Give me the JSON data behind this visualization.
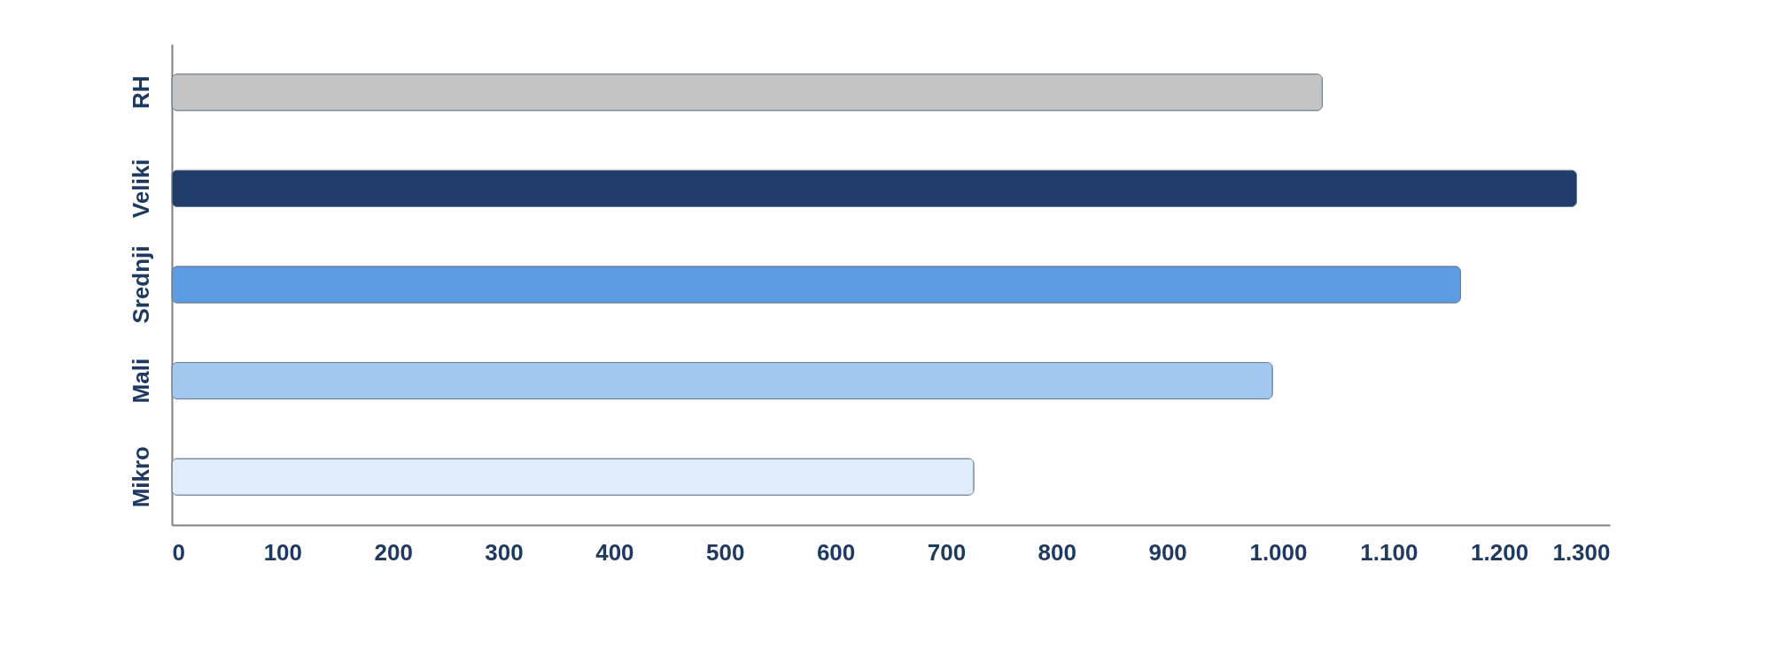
{
  "chart_data": {
    "type": "bar",
    "orientation": "horizontal",
    "categories": [
      "RH",
      "Veliki",
      "Srednji",
      "Mali",
      "Mikro"
    ],
    "values": [
      1040,
      1270,
      1165,
      995,
      725
    ],
    "colors": [
      "#c4c4c4",
      "#1f3d68",
      "#5c9ce2",
      "#a3c8f0",
      "#deedf9"
    ],
    "xlim": [
      0,
      1300
    ],
    "xticks": [
      0,
      100,
      200,
      300,
      400,
      500,
      600,
      700,
      800,
      900,
      {
        "value": 1000,
        "label": "1.000"
      },
      {
        "value": 1100,
        "label": "1.100"
      },
      {
        "value": 1200,
        "label": "1.200"
      },
      {
        "value": 1300,
        "label": "1.300"
      }
    ],
    "grid": false
  }
}
